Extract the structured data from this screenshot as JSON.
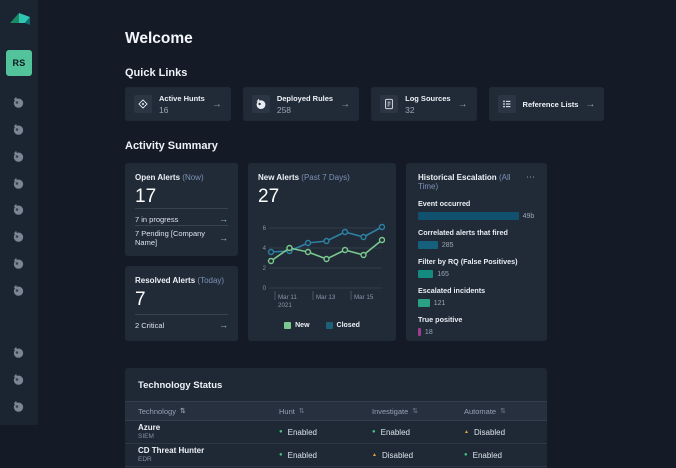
{
  "page": {
    "title": "Welcome"
  },
  "sidebar": {
    "avatar_initials": "RS",
    "avatar_color": "#53c39b"
  },
  "quick_links": {
    "heading": "Quick Links",
    "arrow": "→",
    "cards": [
      {
        "label": "Active Hunts",
        "value": "16",
        "icon": "target-icon"
      },
      {
        "label": "Deployed Rules",
        "value": "258",
        "icon": "rules-icon"
      },
      {
        "label": "Log Sources",
        "value": "32",
        "icon": "document-icon"
      },
      {
        "label": "Reference Lists",
        "value": "",
        "icon": "list-icon"
      }
    ]
  },
  "activity": {
    "heading": "Activity Summary",
    "arrow": "→",
    "open_alerts": {
      "title": "Open Alerts",
      "qualifier": "(Now)",
      "value": "17",
      "links": [
        {
          "label": "7 in progress"
        },
        {
          "label": "7 Pending [Company Name]"
        }
      ]
    },
    "resolved_alerts": {
      "title": "Resolved Alerts",
      "qualifier": "(Today)",
      "value": "7",
      "links": [
        {
          "label": "2 Critical"
        }
      ]
    },
    "new_alerts": {
      "title": "New Alerts",
      "qualifier": "(Past 7 Days)",
      "value": "27"
    },
    "historical": {
      "title": "Historical Escalation",
      "qualifier": "(All Time)",
      "menu": "⋯",
      "bars": [
        {
          "label": "Event occurred",
          "value": "49b",
          "width_pct": 86,
          "color": "#11506e"
        },
        {
          "label": "Correlated alerts that fired",
          "value": "285",
          "width_pct": 17,
          "color": "#17607d"
        },
        {
          "label": "Filter by RQ (False Positives)",
          "value": "165",
          "width_pct": 13,
          "color": "#158a80"
        },
        {
          "label": "Escalated incidents",
          "value": "121",
          "width_pct": 10,
          "color": "#2aa184"
        },
        {
          "label": "True positive",
          "value": "18",
          "width_pct": 2.5,
          "color": "#a23a8e"
        }
      ]
    }
  },
  "chart_data": {
    "type": "line",
    "title": "New Alerts (Past 7 Days)",
    "total": 27,
    "y_ticks": [
      0,
      2,
      4,
      6
    ],
    "ylim": [
      0,
      6.6
    ],
    "x_tick_labels": [
      "Mar 11",
      "Mar 13",
      "Mar 15"
    ],
    "x_sub_label": "2021",
    "grid": true,
    "legend_position": "bottom",
    "series": [
      {
        "name": "Closed",
        "color": "#2e81a5",
        "values": [
          3.6,
          3.7,
          4.5,
          4.7,
          5.6,
          5.1,
          6.1
        ]
      },
      {
        "name": "New",
        "color": "#7bc98e",
        "values": [
          2.7,
          4.0,
          3.6,
          2.9,
          3.8,
          3.3,
          4.8
        ]
      }
    ],
    "legend": [
      {
        "label": "New",
        "color": "#7bc98e"
      },
      {
        "label": "Closed",
        "color": "#1d6079"
      }
    ]
  },
  "technology": {
    "heading": "Technology Status",
    "sort_icon": "⇅",
    "columns": [
      "Technology",
      "Hunt",
      "Investigate",
      "Automate"
    ],
    "rows": [
      {
        "name": "Azure",
        "type": "SIEM",
        "hunt": "Enabled",
        "investigate": "Enabled",
        "automate": "Disabled"
      },
      {
        "name": "CD Threat Hunter",
        "type": "EDR",
        "hunt": "Enabled",
        "investigate": "Disabled",
        "automate": "Enabled"
      }
    ]
  },
  "status_icons": {
    "Enabled": {
      "glyph": "●",
      "color": "#41c97c"
    },
    "Disabled": {
      "glyph": "▲",
      "color": "#e0a93e"
    }
  }
}
